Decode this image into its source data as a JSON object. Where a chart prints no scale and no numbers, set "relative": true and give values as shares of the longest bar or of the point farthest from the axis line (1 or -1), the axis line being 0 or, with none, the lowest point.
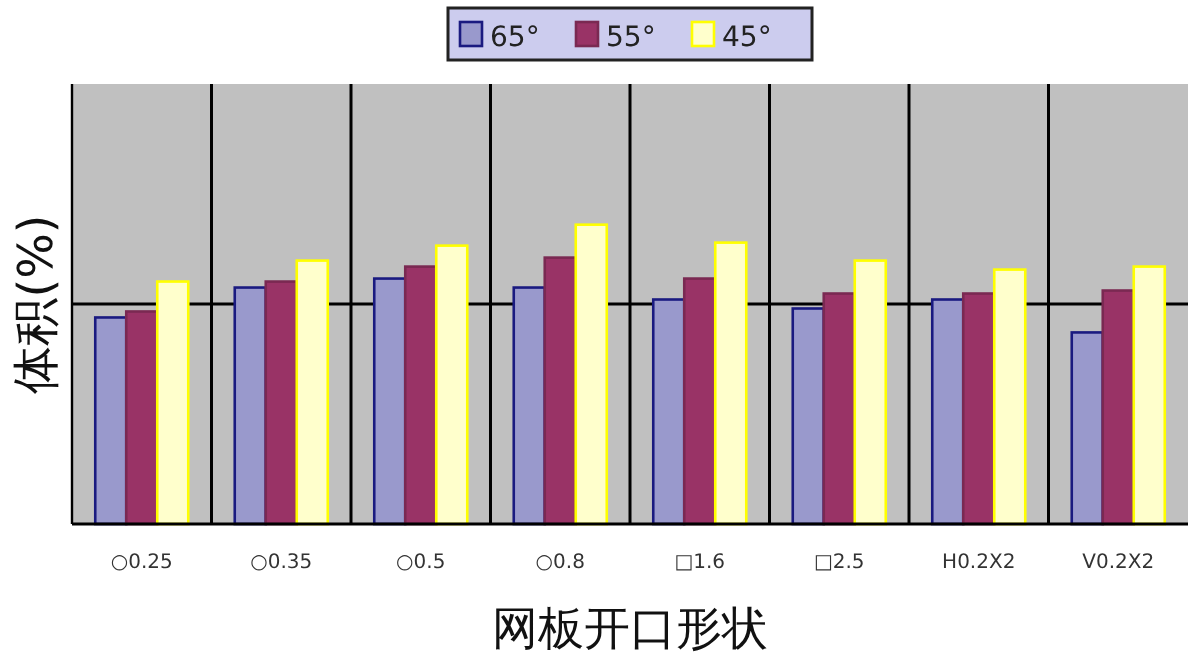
{
  "chart_data": {
    "type": "bar",
    "relative": true,
    "ylabel": "体积(%)",
    "xlabel": "网板开口形状",
    "categories": [
      "○0.25",
      "○0.35",
      "○0.5",
      "○0.8",
      "□1.6",
      "□2.5",
      "H0.2X2",
      "V0.2X2"
    ],
    "series": [
      {
        "name": "65°",
        "color": "#9999cc",
        "values": [
          0.69,
          0.79,
          0.82,
          0.79,
          0.75,
          0.72,
          0.75,
          0.64
        ]
      },
      {
        "name": "55°",
        "color": "#993366",
        "values": [
          0.71,
          0.81,
          0.86,
          0.89,
          0.82,
          0.77,
          0.77,
          0.78
        ]
      },
      {
        "name": "45°",
        "color": "#ffffcc",
        "values": [
          0.81,
          0.88,
          0.93,
          1,
          0.94,
          0.88,
          0.85,
          0.86
        ]
      }
    ],
    "grid": true,
    "legend": "top"
  }
}
